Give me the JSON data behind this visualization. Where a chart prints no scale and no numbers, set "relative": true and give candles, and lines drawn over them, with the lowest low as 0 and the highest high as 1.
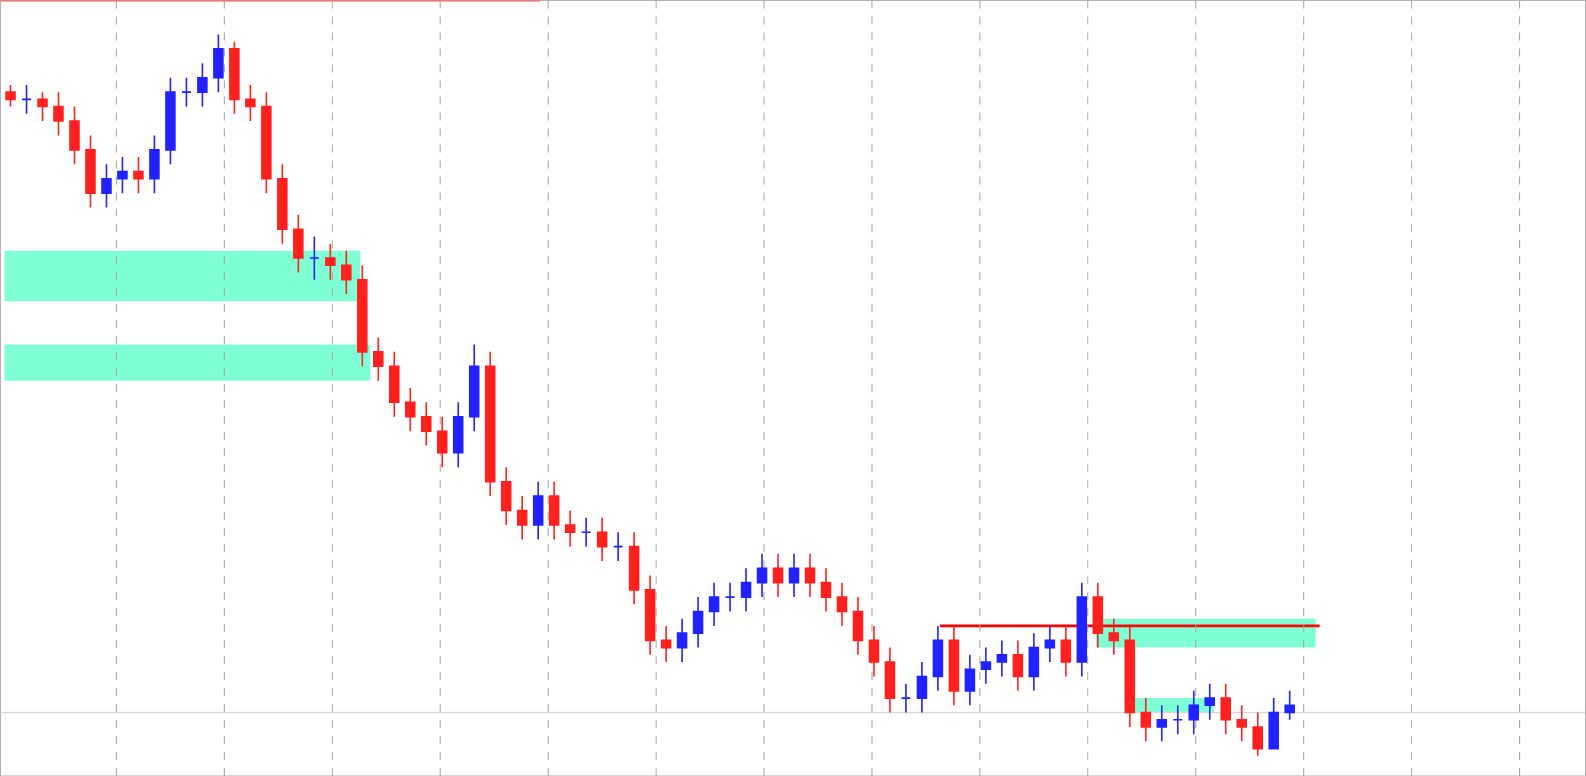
{
  "chart_data": {
    "type": "candlestick",
    "relative": true,
    "grid": "x",
    "bands": [
      {
        "axis": "y",
        "from": 0.63,
        "to": 0.7,
        "color": "#7fffd4"
      },
      {
        "axis": "y",
        "from": 0.52,
        "to": 0.57,
        "color": "#7fffd4"
      },
      {
        "axis": "y",
        "from": 0.15,
        "to": 0.19,
        "color": "#7fffd4"
      },
      {
        "axis": "y",
        "from": 0.06,
        "to": 0.08,
        "color": "#7fffd4"
      }
    ],
    "ref_lines": [
      {
        "axis": "y",
        "value": 0.18,
        "color": "#ff0000"
      },
      {
        "axis": "y",
        "value": 0.06,
        "color": "#d9d9d9"
      }
    ],
    "categories": [
      null,
      null,
      null,
      null,
      null,
      null,
      null,
      null,
      null,
      null,
      null,
      null,
      null,
      null,
      null,
      null,
      null,
      null,
      null,
      null,
      null,
      null,
      null,
      null,
      null,
      null,
      null,
      null,
      null,
      null,
      null,
      null,
      null,
      null,
      null,
      null,
      null,
      null,
      null,
      null,
      null,
      null,
      null,
      null,
      null,
      null,
      null,
      null,
      null,
      null,
      null,
      null,
      null,
      null,
      null,
      null,
      null,
      null,
      null,
      null,
      null,
      null,
      null,
      null,
      null,
      null,
      null,
      null,
      null,
      null,
      null,
      null,
      null,
      null,
      null,
      null,
      null,
      null,
      null,
      null,
      null
    ],
    "ohlc": [
      [
        0.92,
        0.93,
        0.9,
        0.91
      ],
      [
        0.91,
        0.93,
        0.89,
        0.91
      ],
      [
        0.91,
        0.92,
        0.88,
        0.9
      ],
      [
        0.9,
        0.92,
        0.86,
        0.88
      ],
      [
        0.88,
        0.9,
        0.82,
        0.84
      ],
      [
        0.84,
        0.86,
        0.76,
        0.78
      ],
      [
        0.78,
        0.82,
        0.76,
        0.8
      ],
      [
        0.8,
        0.83,
        0.78,
        0.81
      ],
      [
        0.81,
        0.83,
        0.78,
        0.8
      ],
      [
        0.8,
        0.86,
        0.78,
        0.84
      ],
      [
        0.84,
        0.94,
        0.82,
        0.92
      ],
      [
        0.92,
        0.94,
        0.9,
        0.92
      ],
      [
        0.92,
        0.96,
        0.9,
        0.94
      ],
      [
        0.94,
        1.0,
        0.92,
        0.98
      ],
      [
        0.98,
        0.99,
        0.89,
        0.91
      ],
      [
        0.91,
        0.93,
        0.88,
        0.9
      ],
      [
        0.9,
        0.92,
        0.78,
        0.8
      ],
      [
        0.8,
        0.82,
        0.71,
        0.73
      ],
      [
        0.73,
        0.75,
        0.67,
        0.69
      ],
      [
        0.69,
        0.72,
        0.66,
        0.69
      ],
      [
        0.69,
        0.71,
        0.66,
        0.68
      ],
      [
        0.68,
        0.7,
        0.64,
        0.66
      ],
      [
        0.66,
        0.68,
        0.54,
        0.56
      ],
      [
        0.56,
        0.58,
        0.52,
        0.54
      ],
      [
        0.54,
        0.56,
        0.47,
        0.49
      ],
      [
        0.49,
        0.51,
        0.45,
        0.47
      ],
      [
        0.47,
        0.49,
        0.43,
        0.45
      ],
      [
        0.45,
        0.47,
        0.4,
        0.42
      ],
      [
        0.42,
        0.49,
        0.4,
        0.47
      ],
      [
        0.47,
        0.57,
        0.45,
        0.54
      ],
      [
        0.54,
        0.56,
        0.36,
        0.38
      ],
      [
        0.38,
        0.4,
        0.32,
        0.34
      ],
      [
        0.34,
        0.36,
        0.3,
        0.32
      ],
      [
        0.32,
        0.38,
        0.3,
        0.36
      ],
      [
        0.36,
        0.38,
        0.3,
        0.32
      ],
      [
        0.32,
        0.34,
        0.29,
        0.31
      ],
      [
        0.31,
        0.33,
        0.29,
        0.31
      ],
      [
        0.31,
        0.33,
        0.27,
        0.29
      ],
      [
        0.29,
        0.31,
        0.27,
        0.29
      ],
      [
        0.29,
        0.31,
        0.21,
        0.23
      ],
      [
        0.23,
        0.25,
        0.14,
        0.16
      ],
      [
        0.16,
        0.18,
        0.13,
        0.15
      ],
      [
        0.15,
        0.19,
        0.13,
        0.17
      ],
      [
        0.17,
        0.22,
        0.15,
        0.2
      ],
      [
        0.2,
        0.24,
        0.18,
        0.22
      ],
      [
        0.22,
        0.24,
        0.2,
        0.22
      ],
      [
        0.22,
        0.26,
        0.2,
        0.24
      ],
      [
        0.24,
        0.28,
        0.22,
        0.26
      ],
      [
        0.26,
        0.28,
        0.22,
        0.24
      ],
      [
        0.24,
        0.28,
        0.22,
        0.26
      ],
      [
        0.26,
        0.28,
        0.22,
        0.24
      ],
      [
        0.24,
        0.26,
        0.2,
        0.22
      ],
      [
        0.22,
        0.24,
        0.18,
        0.2
      ],
      [
        0.2,
        0.22,
        0.14,
        0.16
      ],
      [
        0.16,
        0.18,
        0.11,
        0.13
      ],
      [
        0.13,
        0.15,
        0.06,
        0.08
      ],
      [
        0.08,
        0.1,
        0.06,
        0.08
      ],
      [
        0.08,
        0.13,
        0.06,
        0.11
      ],
      [
        0.11,
        0.18,
        0.09,
        0.16
      ],
      [
        0.16,
        0.18,
        0.07,
        0.09
      ],
      [
        0.09,
        0.14,
        0.07,
        0.12
      ],
      [
        0.12,
        0.15,
        0.1,
        0.13
      ],
      [
        0.13,
        0.16,
        0.11,
        0.14
      ],
      [
        0.14,
        0.16,
        0.09,
        0.11
      ],
      [
        0.11,
        0.17,
        0.09,
        0.15
      ],
      [
        0.15,
        0.18,
        0.13,
        0.16
      ],
      [
        0.16,
        0.18,
        0.11,
        0.13
      ],
      [
        0.13,
        0.24,
        0.11,
        0.22
      ],
      [
        0.22,
        0.24,
        0.15,
        0.17
      ],
      [
        0.17,
        0.19,
        0.14,
        0.16
      ],
      [
        0.16,
        0.18,
        0.04,
        0.06
      ],
      [
        0.06,
        0.08,
        0.02,
        0.04
      ],
      [
        0.04,
        0.07,
        0.02,
        0.05
      ],
      [
        0.05,
        0.07,
        0.03,
        0.05
      ],
      [
        0.05,
        0.09,
        0.03,
        0.07
      ],
      [
        0.07,
        0.1,
        0.05,
        0.08
      ],
      [
        0.08,
        0.1,
        0.03,
        0.05
      ],
      [
        0.05,
        0.07,
        0.02,
        0.04
      ],
      [
        0.04,
        0.06,
        0.0,
        0.01
      ],
      [
        0.01,
        0.08,
        0.01,
        0.06
      ],
      [
        0.06,
        0.09,
        0.05,
        0.07
      ]
    ]
  }
}
